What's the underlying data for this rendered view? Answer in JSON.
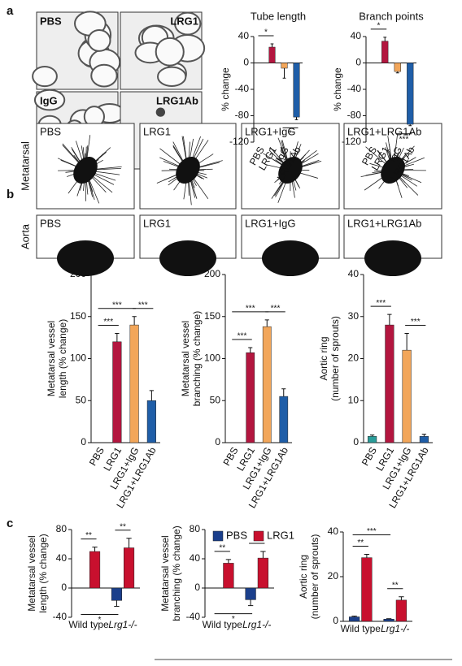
{
  "panel_labels": [
    "a",
    "b",
    "c"
  ],
  "micrographs": {
    "a": [
      "PBS",
      "LRG1",
      "IgG",
      "LRG1Ab"
    ],
    "b": {
      "rows": [
        "Metatarsal",
        "Aorta"
      ],
      "columns": [
        "PBS",
        "LRG1",
        "LRG1+IgG",
        "LRG1+LRG1Ab"
      ]
    }
  },
  "chart_data": [
    {
      "type": "bar",
      "title": "Tube length",
      "ylabel": [
        "% change"
      ],
      "categories": [
        "PBS",
        "LRG1",
        "IgG",
        "LRG1Ab"
      ],
      "values": [
        0,
        24,
        -8,
        -82
      ],
      "errors": [
        0,
        5,
        15,
        4
      ],
      "colors": [
        "#555555",
        "#b3163f",
        "#f2a65a",
        "#1f5ea8"
      ],
      "ylim": [
        -120,
        40
      ],
      "yticks": [
        -120,
        -80,
        -40,
        0,
        40
      ],
      "significance": [
        {
          "label": "*",
          "between": [
            "PBS",
            "LRG1"
          ],
          "side": "above"
        },
        {
          "label": "*",
          "between": [
            "IgG",
            "LRG1Ab"
          ],
          "side": "below"
        }
      ]
    },
    {
      "type": "bar",
      "title": "Branch points",
      "ylabel": [
        "% change"
      ],
      "categories": [
        "PBS",
        "LRG1",
        "IgG",
        "LRG1Ab"
      ],
      "values": [
        0,
        33,
        -13,
        -93
      ],
      "errors": [
        0,
        6,
        2,
        2
      ],
      "colors": [
        "#555555",
        "#b3163f",
        "#f2a65a",
        "#1f5ea8"
      ],
      "ylim": [
        -120,
        40
      ],
      "yticks": [
        -120,
        -80,
        -40,
        0,
        40
      ],
      "significance": [
        {
          "label": "*",
          "between": [
            "PBS",
            "LRG1"
          ],
          "side": "above"
        },
        {
          "label": "***",
          "between": [
            "IgG",
            "LRG1Ab"
          ],
          "side": "below"
        }
      ]
    },
    {
      "type": "bar",
      "ylabel": [
        "Metatarsal vessel",
        "length (% change)"
      ],
      "categories": [
        "PBS",
        "LRG1",
        "LRG1+IgG",
        "LRG1+LRG1Ab"
      ],
      "values": [
        0,
        120,
        140,
        50
      ],
      "errors": [
        0,
        10,
        10,
        12
      ],
      "colors": [
        "#2a9d9a",
        "#b3163f",
        "#f2a65a",
        "#1f5ea8"
      ],
      "ylim": [
        0,
        200
      ],
      "yticks": [
        0,
        50,
        100,
        150,
        200
      ],
      "significance": [
        {
          "label": "***",
          "between": [
            "PBS",
            "LRG1"
          ],
          "side": "above"
        },
        {
          "label": "***",
          "between": [
            "PBS",
            "LRG1+IgG"
          ],
          "side": "above"
        },
        {
          "label": "***",
          "between": [
            "LRG1+IgG",
            "LRG1+LRG1Ab"
          ],
          "side": "above"
        }
      ]
    },
    {
      "type": "bar",
      "ylabel": [
        "Metatarsal vessel",
        "branching (% change)"
      ],
      "categories": [
        "PBS",
        "LRG1",
        "LRG1+IgG",
        "LRG1+LRG1Ab"
      ],
      "values": [
        0,
        107,
        138,
        55
      ],
      "errors": [
        0,
        6,
        8,
        9
      ],
      "colors": [
        "#2a9d9a",
        "#b3163f",
        "#f2a65a",
        "#1f5ea8"
      ],
      "ylim": [
        0,
        200
      ],
      "yticks": [
        0,
        50,
        100,
        150,
        200
      ],
      "significance": [
        {
          "label": "***",
          "between": [
            "PBS",
            "LRG1"
          ],
          "side": "above"
        },
        {
          "label": "***",
          "between": [
            "PBS",
            "LRG1+IgG"
          ],
          "side": "above"
        },
        {
          "label": "***",
          "between": [
            "LRG1+IgG",
            "LRG1+LRG1Ab"
          ],
          "side": "above"
        }
      ]
    },
    {
      "type": "bar",
      "ylabel": [
        "Aortic ring",
        "(number of sprouts)"
      ],
      "categories": [
        "PBS",
        "LRG1",
        "LRG1+IgG",
        "LRG1+LRG1Ab"
      ],
      "values": [
        1.5,
        28,
        22,
        1.5
      ],
      "errors": [
        0.3,
        2.5,
        4,
        0.5
      ],
      "colors": [
        "#2a9d9a",
        "#b3163f",
        "#f2a65a",
        "#1f5ea8"
      ],
      "ylim": [
        0,
        40
      ],
      "yticks": [
        0,
        10,
        20,
        30,
        40
      ],
      "significance": [
        {
          "label": "***",
          "between": [
            "PBS",
            "LRG1"
          ],
          "side": "above"
        },
        {
          "label": "***",
          "between": [
            "LRG1+IgG",
            "LRG1+LRG1Ab"
          ],
          "side": "above"
        }
      ]
    },
    {
      "type": "grouped-bar",
      "ylabel": [
        "Metatarsal vessel",
        "length (% change)"
      ],
      "categories": [
        "Wild type",
        "Lrg1-/-"
      ],
      "series": [
        {
          "name": "PBS",
          "color": "#1b3f8b",
          "values": [
            0,
            -17
          ],
          "errors": [
            0,
            8
          ]
        },
        {
          "name": "LRG1",
          "color": "#c8102e",
          "values": [
            50,
            55
          ],
          "errors": [
            6,
            13
          ]
        }
      ],
      "ylim": [
        -40,
        80
      ],
      "yticks": [
        -40,
        0,
        40,
        80
      ],
      "significance": [
        {
          "label": "**",
          "between": [
            [
              "Wild type",
              "PBS"
            ],
            [
              "Wild type",
              "LRG1"
            ]
          ],
          "side": "above"
        },
        {
          "label": "**",
          "between": [
            [
              "Lrg1-/-",
              "PBS"
            ],
            [
              "Lrg1-/-",
              "LRG1"
            ]
          ],
          "side": "above"
        },
        {
          "label": "*",
          "between": [
            [
              "Wild type",
              "PBS"
            ],
            [
              "Lrg1-/-",
              "PBS"
            ]
          ],
          "side": "below"
        }
      ]
    },
    {
      "type": "grouped-bar",
      "ylabel": [
        "Metatarsal vessel",
        "branching (% change)"
      ],
      "categories": [
        "Wild type",
        "Lrg1-/-"
      ],
      "legend": true,
      "series": [
        {
          "name": "PBS",
          "color": "#1b3f8b",
          "values": [
            0,
            -16
          ],
          "errors": [
            0,
            8
          ]
        },
        {
          "name": "LRG1",
          "color": "#c8102e",
          "values": [
            34,
            41
          ],
          "errors": [
            5,
            9
          ]
        }
      ],
      "ylim": [
        -40,
        80
      ],
      "yticks": [
        -40,
        0,
        40,
        80
      ],
      "significance": [
        {
          "label": "**",
          "between": [
            [
              "Wild type",
              "PBS"
            ],
            [
              "Wild type",
              "LRG1"
            ]
          ],
          "side": "above"
        },
        {
          "label": "**",
          "between": [
            [
              "Lrg1-/-",
              "PBS"
            ],
            [
              "Lrg1-/-",
              "LRG1"
            ]
          ],
          "side": "above"
        },
        {
          "label": "*",
          "between": [
            [
              "Wild type",
              "PBS"
            ],
            [
              "Lrg1-/-",
              "PBS"
            ]
          ],
          "side": "below"
        }
      ]
    },
    {
      "type": "grouped-bar",
      "ylabel": [
        "Aortic ring",
        "(number of sprouts)"
      ],
      "categories": [
        "Wild type",
        "Lrg1-/-"
      ],
      "series": [
        {
          "name": "PBS",
          "color": "#1b3f8b",
          "values": [
            2,
            1
          ],
          "errors": [
            0.3,
            0.2
          ]
        },
        {
          "name": "LRG1",
          "color": "#c8102e",
          "values": [
            28.5,
            9.5
          ],
          "errors": [
            1.5,
            1.5
          ]
        }
      ],
      "ylim": [
        0,
        40
      ],
      "yticks": [
        0,
        20,
        40
      ],
      "significance": [
        {
          "label": "**",
          "between": [
            [
              "Wild type",
              "PBS"
            ],
            [
              "Wild type",
              "LRG1"
            ]
          ],
          "side": "above"
        },
        {
          "label": "***",
          "between": [
            [
              "Wild type",
              "PBS"
            ],
            [
              "Lrg1-/-",
              "PBS"
            ]
          ],
          "side": "above"
        },
        {
          "label": "**",
          "between": [
            [
              "Lrg1-/-",
              "PBS"
            ],
            [
              "Lrg1-/-",
              "LRG1"
            ]
          ],
          "side": "above"
        }
      ]
    }
  ]
}
